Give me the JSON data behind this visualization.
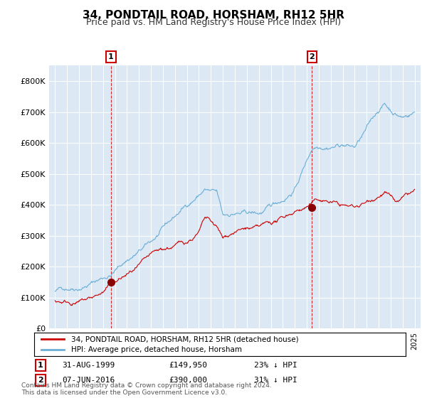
{
  "title": "34, PONDTAIL ROAD, HORSHAM, RH12 5HR",
  "subtitle": "Price paid vs. HM Land Registry's House Price Index (HPI)",
  "ylim": [
    0,
    850000
  ],
  "yticks": [
    0,
    100000,
    200000,
    300000,
    400000,
    500000,
    600000,
    700000,
    800000
  ],
  "hpi_color": "#6baed6",
  "price_color": "#cc0000",
  "bg_color": "#ffffff",
  "plot_bg_color": "#dce9f5",
  "grid_color": "#ffffff",
  "annotation1": {
    "label": "1",
    "date": "31-AUG-1999",
    "price": "£149,950",
    "pct": "23% ↓ HPI"
  },
  "annotation2": {
    "label": "2",
    "date": "07-JUN-2016",
    "price": "£390,000",
    "pct": "31% ↓ HPI"
  },
  "legend_entry1": "34, PONDTAIL ROAD, HORSHAM, RH12 5HR (detached house)",
  "legend_entry2": "HPI: Average price, detached house, Horsham",
  "footnote": "Contains HM Land Registry data © Crown copyright and database right 2024.\nThis data is licensed under the Open Government Licence v3.0.",
  "sale1_year": 1999.67,
  "sale1_price": 149950,
  "sale2_year": 2016.44,
  "sale2_price": 390000
}
